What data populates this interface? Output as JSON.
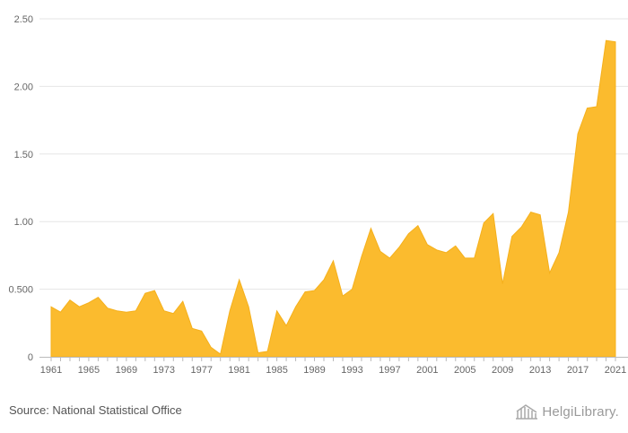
{
  "chart_data": {
    "type": "area",
    "title": "",
    "xlabel": "",
    "ylabel": "",
    "color": "#FBBB2E",
    "grid": true,
    "x": [
      1961,
      1962,
      1963,
      1964,
      1965,
      1966,
      1967,
      1968,
      1969,
      1970,
      1971,
      1972,
      1973,
      1974,
      1975,
      1976,
      1977,
      1978,
      1979,
      1980,
      1981,
      1982,
      1983,
      1984,
      1985,
      1986,
      1987,
      1988,
      1989,
      1990,
      1991,
      1992,
      1993,
      1994,
      1995,
      1996,
      1997,
      1998,
      1999,
      2000,
      2001,
      2002,
      2003,
      2004,
      2005,
      2006,
      2007,
      2008,
      2009,
      2010,
      2011,
      2012,
      2013,
      2014,
      2015,
      2016,
      2017,
      2018,
      2019,
      2020,
      2021
    ],
    "values": [
      0.37,
      0.33,
      0.42,
      0.37,
      0.4,
      0.44,
      0.36,
      0.34,
      0.33,
      0.34,
      0.47,
      0.49,
      0.34,
      0.32,
      0.41,
      0.21,
      0.19,
      0.07,
      0.02,
      0.34,
      0.57,
      0.37,
      0.03,
      0.04,
      0.34,
      0.23,
      0.37,
      0.48,
      0.49,
      0.57,
      0.71,
      0.45,
      0.5,
      0.74,
      0.95,
      0.78,
      0.73,
      0.81,
      0.91,
      0.97,
      0.83,
      0.79,
      0.77,
      0.82,
      0.73,
      0.73,
      0.99,
      1.06,
      0.54,
      0.89,
      0.96,
      1.07,
      1.05,
      0.62,
      0.77,
      1.07,
      1.65,
      1.84,
      1.85,
      2.34,
      2.33
    ],
    "ylim": [
      0,
      2.5
    ],
    "y_ticks": [
      0,
      0.5,
      1.0,
      1.5,
      2.0,
      2.5
    ],
    "y_tick_labels": [
      "0",
      "0.500",
      "1.00",
      "1.50",
      "2.00",
      "2.50"
    ],
    "x_tick_labels": [
      "1961",
      "1965",
      "1969",
      "1973",
      "1977",
      "1981",
      "1985",
      "1989",
      "1993",
      "1997",
      "2001",
      "2005",
      "2009",
      "2013",
      "2017",
      "2021"
    ]
  },
  "footer": {
    "source": "Source: National Statistical Office",
    "logo_text": "HelgiLibrary."
  }
}
